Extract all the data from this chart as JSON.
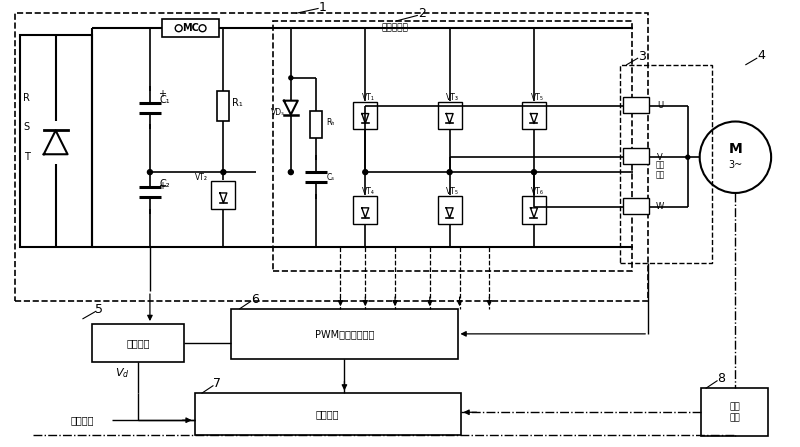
{
  "bg_color": "#ffffff",
  "c1_label": "C₁",
  "c2_label": "C₂",
  "r1_label": "R₁",
  "cs_label": "Cₛ",
  "ry_label": "Rₕ",
  "vd_label": "VDₛ",
  "vt1_label": "VT₁",
  "vt2_label": "VT₂",
  "vt3_label": "VT₃",
  "vt4_label": "VT₄",
  "vt5_label": "VT₅",
  "vt6_label": "VT₆",
  "mc_label": "MC",
  "sanxiang": "三相逆变桥",
  "dianya_jiance": "电压检测",
  "pwm_label": "PWM信号发生单元",
  "control_label": "控制算法",
  "speed_label": "速度\n检测",
  "current_label": "电流\n检测",
  "freq_label": "频率给定",
  "rst": [
    "R",
    "S",
    "T"
  ],
  "uvw": [
    "U",
    "V",
    "W"
  ],
  "labels": [
    "1",
    "2",
    "3",
    "4",
    "5",
    "6",
    "7",
    "8"
  ]
}
